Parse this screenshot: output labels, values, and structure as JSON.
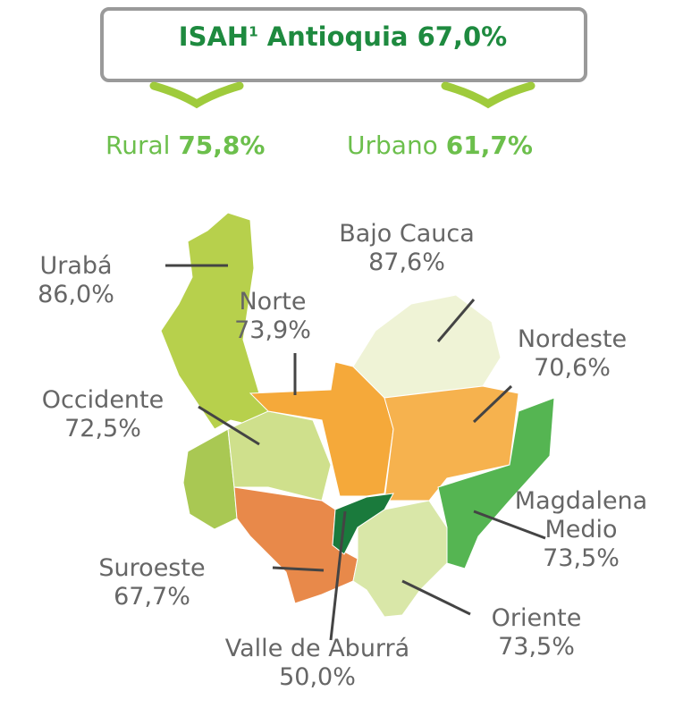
{
  "header": {
    "prefix": "ISAH",
    "superscript": "1",
    "name": "Antioquia",
    "value": "67,0%"
  },
  "rural": {
    "label": "Rural",
    "value": "75,8%"
  },
  "urban": {
    "label": "Urbano",
    "value": "61,7%"
  },
  "regions": [
    {
      "name": "Urabá",
      "value": "86,0%"
    },
    {
      "name": "Norte",
      "value": "73,9%"
    },
    {
      "name": "Bajo Cauca",
      "value": "87,6%"
    },
    {
      "name": "Nordeste",
      "value": "70,6%"
    },
    {
      "name": "Occidente",
      "value": "72,5%"
    },
    {
      "name": "Magdalena Medio",
      "value": "73,5%"
    },
    {
      "name": "Suroeste",
      "value": "67,7%"
    },
    {
      "name": "Oriente",
      "value": "73,5%"
    },
    {
      "name": "Valle de Aburrá",
      "value": "50,0%"
    }
  ]
}
